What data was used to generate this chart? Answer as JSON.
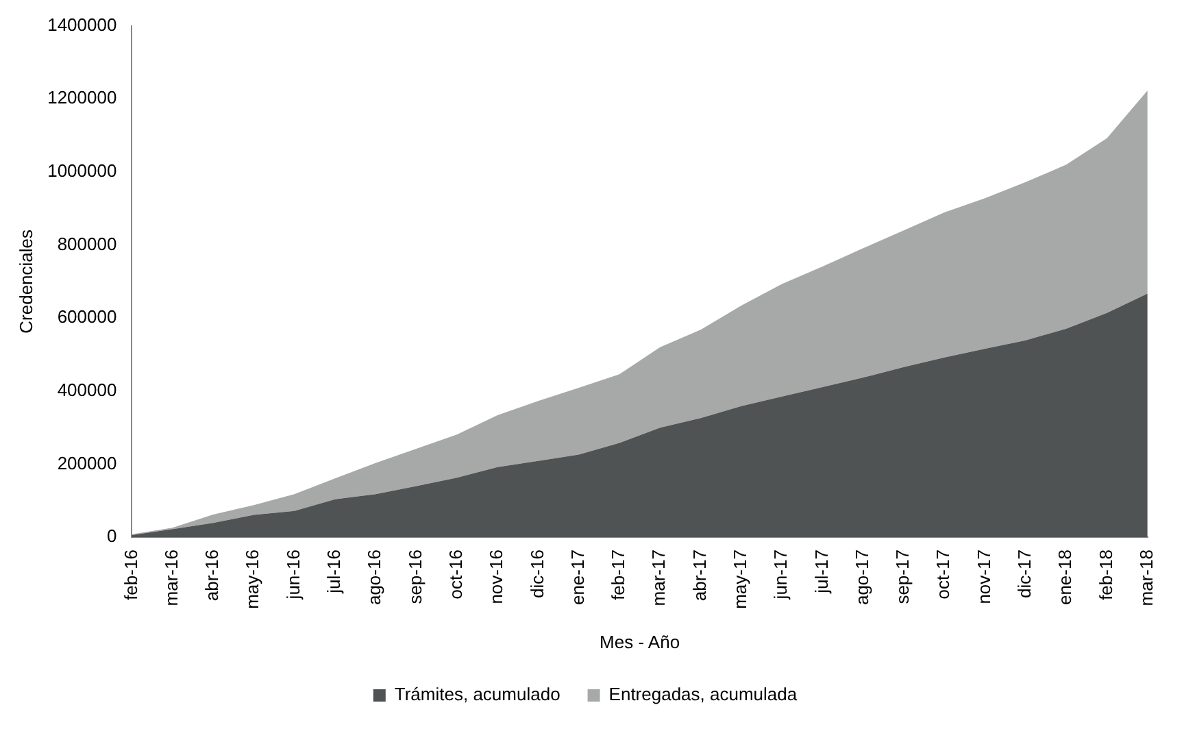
{
  "chart_data": {
    "type": "area",
    "stacked": true,
    "xlabel": "Mes - Año",
    "ylabel": "Credenciales",
    "categories": [
      "feb-16",
      "mar-16",
      "abr-16",
      "may-16",
      "jun-16",
      "jul-16",
      "ago-16",
      "sep-16",
      "oct-16",
      "nov-16",
      "dic-16",
      "ene-17",
      "feb-17",
      "mar-17",
      "abr-17",
      "may-17",
      "jun-17",
      "jul-17",
      "ago-17",
      "sep-17",
      "oct-17",
      "nov-17",
      "dic-17",
      "ene-18",
      "feb-18",
      "mar-18"
    ],
    "series": [
      {
        "name": "Trámites, acumulado",
        "color": "#505354",
        "values": [
          6000,
          22000,
          39000,
          61000,
          72000,
          104000,
          118000,
          140000,
          163000,
          192000,
          209000,
          226000,
          258000,
          300000,
          326000,
          359000,
          385000,
          411000,
          437000,
          466000,
          492000,
          516000,
          539000,
          571000,
          614000,
          667000
        ]
      },
      {
        "name": "Entregadas, acumulada",
        "color": "#a7a9a9",
        "values": [
          2000,
          4000,
          23000,
          27000,
          46000,
          57000,
          85000,
          102000,
          118000,
          142000,
          164000,
          183000,
          188000,
          220000,
          242000,
          275000,
          308000,
          330000,
          354000,
          374000,
          397000,
          412000,
          433000,
          449000,
          478000,
          556000
        ]
      }
    ],
    "ylim": [
      0,
      1400000
    ],
    "yticks": [
      0,
      200000,
      400000,
      600000,
      800000,
      1000000,
      1200000,
      1400000
    ],
    "grid": false,
    "legend": "bottom"
  }
}
